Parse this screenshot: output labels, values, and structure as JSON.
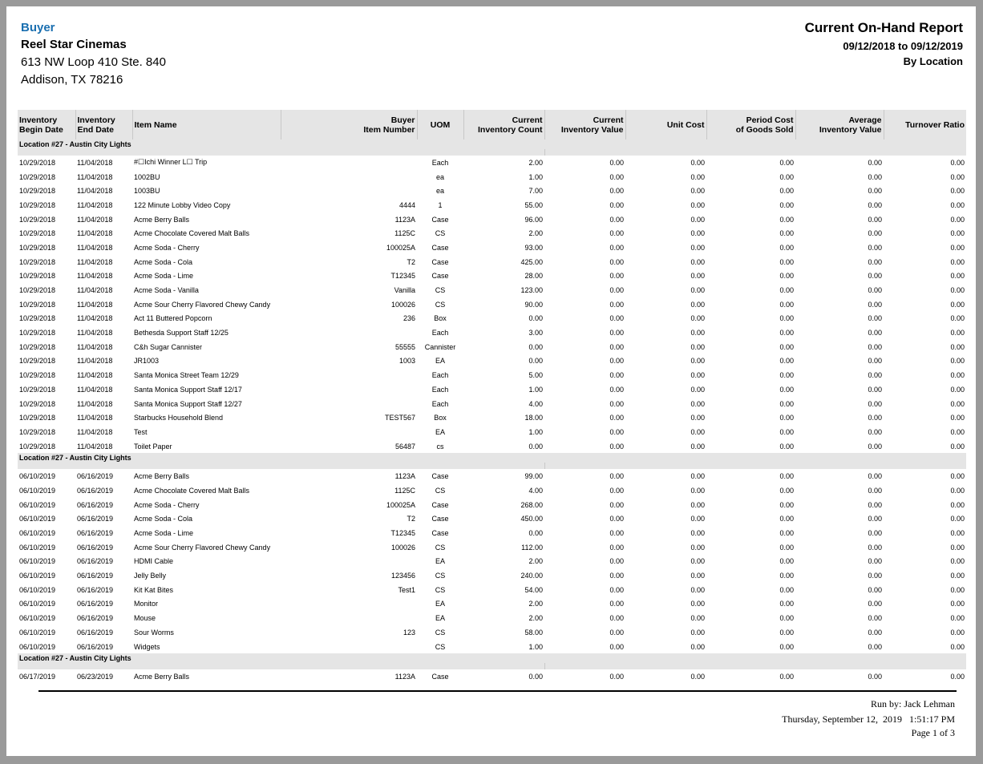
{
  "header": {
    "buyer_label": "Buyer",
    "company": "Reel Star Cinemas",
    "address_line1": "613 NW Loop 410 Ste. 840",
    "address_line2": "Addison, TX 78216",
    "title": "Current On-Hand Report",
    "date_range": "09/12/2018 to 09/12/2019",
    "grouping": "By Location"
  },
  "colors": {
    "buyer_label": "#1a6fb0",
    "header_bg": "#e5e5e5"
  },
  "columns": [
    {
      "label1": "Inventory",
      "label2": "Begin Date",
      "align": "l"
    },
    {
      "label1": "Inventory",
      "label2": "End Date",
      "align": "l"
    },
    {
      "label1": "",
      "label2": "Item Name",
      "align": "l"
    },
    {
      "label1": "Buyer",
      "label2": "Item Number",
      "align": "r"
    },
    {
      "label1": "",
      "label2": "UOM",
      "align": "c"
    },
    {
      "label1": "Current",
      "label2": "Inventory Count",
      "align": "r"
    },
    {
      "label1": "Current",
      "label2": "Inventory Value",
      "align": "r"
    },
    {
      "label1": "",
      "label2": "Unit Cost",
      "align": "r"
    },
    {
      "label1": "Period Cost",
      "label2": "of Goods Sold",
      "align": "r"
    },
    {
      "label1": "Average",
      "label2": "Inventory Value",
      "align": "r"
    },
    {
      "label1": "",
      "label2": "Turnover Ratio",
      "align": "r"
    }
  ],
  "groups": [
    {
      "location": "Location #27  -  Austin City Lights",
      "rows": [
        [
          "10/29/2018",
          "11/04/2018",
          "#☐Ichi Winner L☐ Trip",
          "",
          "Each",
          "2.00",
          "0.00",
          "0.00",
          "0.00",
          "0.00",
          "0.00"
        ],
        [
          "10/29/2018",
          "11/04/2018",
          "1002BU",
          "",
          "ea",
          "1.00",
          "0.00",
          "0.00",
          "0.00",
          "0.00",
          "0.00"
        ],
        [
          "10/29/2018",
          "11/04/2018",
          "1003BU",
          "",
          "ea",
          "7.00",
          "0.00",
          "0.00",
          "0.00",
          "0.00",
          "0.00"
        ],
        [
          "10/29/2018",
          "11/04/2018",
          "122 Minute Lobby Video Copy",
          "4444",
          "1",
          "55.00",
          "0.00",
          "0.00",
          "0.00",
          "0.00",
          "0.00"
        ],
        [
          "10/29/2018",
          "11/04/2018",
          "Acme Berry Balls",
          "1123A",
          "Case",
          "96.00",
          "0.00",
          "0.00",
          "0.00",
          "0.00",
          "0.00"
        ],
        [
          "10/29/2018",
          "11/04/2018",
          "Acme Chocolate Covered Malt Balls",
          "1125C",
          "CS",
          "2.00",
          "0.00",
          "0.00",
          "0.00",
          "0.00",
          "0.00"
        ],
        [
          "10/29/2018",
          "11/04/2018",
          "Acme Soda - Cherry",
          "100025A",
          "Case",
          "93.00",
          "0.00",
          "0.00",
          "0.00",
          "0.00",
          "0.00"
        ],
        [
          "10/29/2018",
          "11/04/2018",
          "Acme Soda - Cola",
          "T2",
          "Case",
          "425.00",
          "0.00",
          "0.00",
          "0.00",
          "0.00",
          "0.00"
        ],
        [
          "10/29/2018",
          "11/04/2018",
          "Acme Soda - Lime",
          "T12345",
          "Case",
          "28.00",
          "0.00",
          "0.00",
          "0.00",
          "0.00",
          "0.00"
        ],
        [
          "10/29/2018",
          "11/04/2018",
          "Acme Soda - Vanilla",
          "Vanilla",
          "CS",
          "123.00",
          "0.00",
          "0.00",
          "0.00",
          "0.00",
          "0.00"
        ],
        [
          "10/29/2018",
          "11/04/2018",
          "Acme Sour Cherry Flavored Chewy Candy",
          "100026",
          "CS",
          "90.00",
          "0.00",
          "0.00",
          "0.00",
          "0.00",
          "0.00"
        ],
        [
          "10/29/2018",
          "11/04/2018",
          "Act 11 Buttered Popcorn",
          "236",
          "Box",
          "0.00",
          "0.00",
          "0.00",
          "0.00",
          "0.00",
          "0.00"
        ],
        [
          "10/29/2018",
          "11/04/2018",
          "Bethesda Support Staff 12/25",
          "",
          "Each",
          "3.00",
          "0.00",
          "0.00",
          "0.00",
          "0.00",
          "0.00"
        ],
        [
          "10/29/2018",
          "11/04/2018",
          "C&h Sugar Cannister",
          "55555",
          "Cannister",
          "0.00",
          "0.00",
          "0.00",
          "0.00",
          "0.00",
          "0.00"
        ],
        [
          "10/29/2018",
          "11/04/2018",
          "JR1003",
          "1003",
          "EA",
          "0.00",
          "0.00",
          "0.00",
          "0.00",
          "0.00",
          "0.00"
        ],
        [
          "10/29/2018",
          "11/04/2018",
          "Santa Monica Street Team 12/29",
          "",
          "Each",
          "5.00",
          "0.00",
          "0.00",
          "0.00",
          "0.00",
          "0.00"
        ],
        [
          "10/29/2018",
          "11/04/2018",
          "Santa Monica Support Staff 12/17",
          "",
          "Each",
          "1.00",
          "0.00",
          "0.00",
          "0.00",
          "0.00",
          "0.00"
        ],
        [
          "10/29/2018",
          "11/04/2018",
          "Santa Monica Support Staff 12/27",
          "",
          "Each",
          "4.00",
          "0.00",
          "0.00",
          "0.00",
          "0.00",
          "0.00"
        ],
        [
          "10/29/2018",
          "11/04/2018",
          "Starbucks Household Blend",
          "TEST567",
          "Box",
          "18.00",
          "0.00",
          "0.00",
          "0.00",
          "0.00",
          "0.00"
        ],
        [
          "10/29/2018",
          "11/04/2018",
          "Test",
          "",
          "EA",
          "1.00",
          "0.00",
          "0.00",
          "0.00",
          "0.00",
          "0.00"
        ],
        [
          "10/29/2018",
          "11/04/2018",
          "Toilet Paper",
          "56487",
          "cs",
          "0.00",
          "0.00",
          "0.00",
          "0.00",
          "0.00",
          "0.00"
        ]
      ]
    },
    {
      "location": "Location #27  -  Austin City Lights",
      "rows": [
        [
          "06/10/2019",
          "06/16/2019",
          "Acme Berry Balls",
          "1123A",
          "Case",
          "99.00",
          "0.00",
          "0.00",
          "0.00",
          "0.00",
          "0.00"
        ],
        [
          "06/10/2019",
          "06/16/2019",
          "Acme Chocolate Covered Malt Balls",
          "1125C",
          "CS",
          "4.00",
          "0.00",
          "0.00",
          "0.00",
          "0.00",
          "0.00"
        ],
        [
          "06/10/2019",
          "06/16/2019",
          "Acme Soda - Cherry",
          "100025A",
          "Case",
          "268.00",
          "0.00",
          "0.00",
          "0.00",
          "0.00",
          "0.00"
        ],
        [
          "06/10/2019",
          "06/16/2019",
          "Acme Soda - Cola",
          "T2",
          "Case",
          "450.00",
          "0.00",
          "0.00",
          "0.00",
          "0.00",
          "0.00"
        ],
        [
          "06/10/2019",
          "06/16/2019",
          "Acme Soda - Lime",
          "T12345",
          "Case",
          "0.00",
          "0.00",
          "0.00",
          "0.00",
          "0.00",
          "0.00"
        ],
        [
          "06/10/2019",
          "06/16/2019",
          "Acme Sour Cherry Flavored Chewy Candy",
          "100026",
          "CS",
          "112.00",
          "0.00",
          "0.00",
          "0.00",
          "0.00",
          "0.00"
        ],
        [
          "06/10/2019",
          "06/16/2019",
          "HDMI Cable",
          "",
          "EA",
          "2.00",
          "0.00",
          "0.00",
          "0.00",
          "0.00",
          "0.00"
        ],
        [
          "06/10/2019",
          "06/16/2019",
          "Jelly Belly",
          "123456",
          "CS",
          "240.00",
          "0.00",
          "0.00",
          "0.00",
          "0.00",
          "0.00"
        ],
        [
          "06/10/2019",
          "06/16/2019",
          "Kit Kat Bites",
          "Test1",
          "CS",
          "54.00",
          "0.00",
          "0.00",
          "0.00",
          "0.00",
          "0.00"
        ],
        [
          "06/10/2019",
          "06/16/2019",
          "Monitor",
          "",
          "EA",
          "2.00",
          "0.00",
          "0.00",
          "0.00",
          "0.00",
          "0.00"
        ],
        [
          "06/10/2019",
          "06/16/2019",
          "Mouse",
          "",
          "EA",
          "2.00",
          "0.00",
          "0.00",
          "0.00",
          "0.00",
          "0.00"
        ],
        [
          "06/10/2019",
          "06/16/2019",
          "Sour Worms",
          "123",
          "CS",
          "58.00",
          "0.00",
          "0.00",
          "0.00",
          "0.00",
          "0.00"
        ],
        [
          "06/10/2019",
          "06/16/2019",
          "Widgets",
          "",
          "CS",
          "1.00",
          "0.00",
          "0.00",
          "0.00",
          "0.00",
          "0.00"
        ]
      ]
    },
    {
      "location": "Location #27  -  Austin City Lights",
      "rows": [
        [
          "06/17/2019",
          "06/23/2019",
          "Acme Berry Balls",
          "1123A",
          "Case",
          "0.00",
          "0.00",
          "0.00",
          "0.00",
          "0.00",
          "0.00"
        ]
      ]
    }
  ],
  "footer": {
    "run_by": "Run by: Jack Lehman",
    "run_datetime": "Thursday, September 12,  2019   1:51:17 PM",
    "page": "Page 1 of 3"
  }
}
